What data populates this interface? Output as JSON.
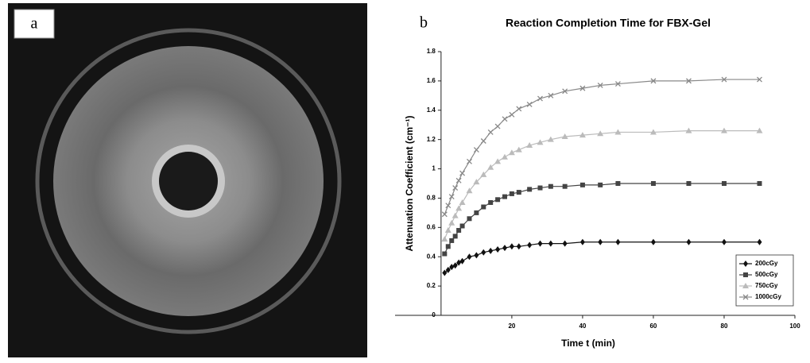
{
  "panel_labels": [
    "a",
    "b"
  ],
  "chart_data": {
    "type": "line",
    "title": "Reaction Completion Time for FBX-Gel",
    "x_label": "Time t (min)",
    "y_label": "Attenuation Coefficient (cm⁻¹)",
    "x": [
      1,
      2,
      3,
      4,
      5,
      6,
      8,
      10,
      12,
      14,
      16,
      18,
      20,
      22,
      25,
      28,
      31,
      35,
      40,
      45,
      50,
      60,
      70,
      80,
      90
    ],
    "series": [
      {
        "name": "200cGy",
        "color": "#111111",
        "marker": "diamond",
        "values": [
          0.29,
          0.31,
          0.33,
          0.34,
          0.36,
          0.37,
          0.4,
          0.41,
          0.43,
          0.44,
          0.45,
          0.46,
          0.47,
          0.47,
          0.48,
          0.49,
          0.49,
          0.49,
          0.5,
          0.5,
          0.5,
          0.5,
          0.5,
          0.5,
          0.5
        ]
      },
      {
        "name": "500cGy",
        "color": "#444444",
        "marker": "square",
        "values": [
          0.42,
          0.47,
          0.51,
          0.54,
          0.58,
          0.61,
          0.66,
          0.7,
          0.74,
          0.77,
          0.79,
          0.81,
          0.83,
          0.84,
          0.86,
          0.87,
          0.88,
          0.88,
          0.89,
          0.89,
          0.9,
          0.9,
          0.9,
          0.9,
          0.9
        ]
      },
      {
        "name": "750cGy",
        "color": "#bbbbbb",
        "marker": "triangle",
        "values": [
          0.52,
          0.58,
          0.63,
          0.68,
          0.73,
          0.77,
          0.85,
          0.91,
          0.96,
          1.01,
          1.05,
          1.08,
          1.11,
          1.13,
          1.16,
          1.18,
          1.2,
          1.22,
          1.23,
          1.24,
          1.25,
          1.25,
          1.26,
          1.26,
          1.26
        ]
      },
      {
        "name": "1000cGy",
        "color": "#888888",
        "marker": "x",
        "values": [
          0.69,
          0.75,
          0.81,
          0.87,
          0.92,
          0.97,
          1.05,
          1.13,
          1.19,
          1.25,
          1.29,
          1.34,
          1.37,
          1.41,
          1.44,
          1.48,
          1.5,
          1.53,
          1.55,
          1.57,
          1.58,
          1.6,
          1.6,
          1.61,
          1.61
        ]
      }
    ],
    "xlim": [
      -13,
      100
    ],
    "xticks": [
      20,
      40,
      60,
      80,
      100
    ],
    "ylim": [
      0,
      1.8
    ],
    "yticks": [
      0,
      0.2,
      0.4,
      0.6,
      0.8,
      1,
      1.2,
      1.4,
      1.6,
      1.8
    ],
    "grid": false,
    "legend": "lower right"
  }
}
